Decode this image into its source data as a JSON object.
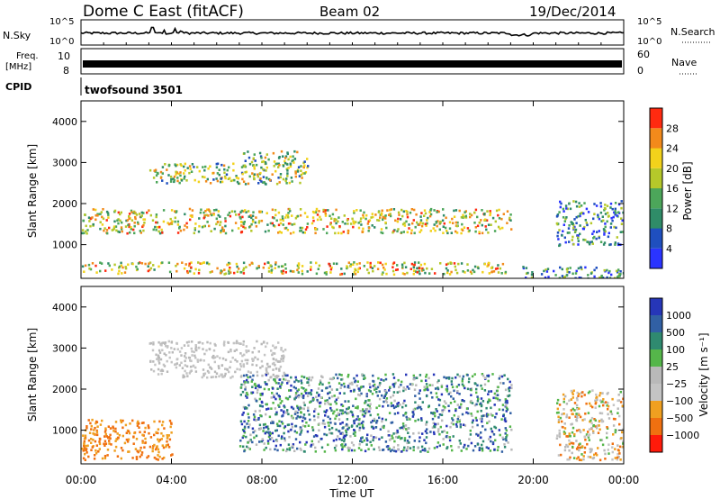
{
  "header": {
    "station": "Dome C East (fitACF)",
    "beam": "Beam 02",
    "date": "19/Dec/2014"
  },
  "strip_labels": {
    "nsky": "N.Sky",
    "nsearch": "N.Search",
    "freq_top": "Freq.",
    "freq_unit": "[MHz]",
    "nave": "Nave",
    "cpid": "CPID",
    "cpid_name": "twofsound 3501",
    "noise_tick_hi": "10^5",
    "noise_tick_lo": "10^0",
    "freq_tick_hi": "10",
    "freq_tick_lo": "8",
    "nave_tick_hi": "60",
    "nave_tick_lo": "0"
  },
  "axes": {
    "ylabel": "Slant Range [km]",
    "xlabel": "Time UT",
    "yticks": [
      "1000",
      "2000",
      "3000",
      "4000"
    ],
    "xticks": [
      "00:00",
      "04:00",
      "08:00",
      "12:00",
      "16:00",
      "20:00",
      "00:00"
    ]
  },
  "power_scale": {
    "label": "Power [dB]",
    "ticks": [
      "4",
      "8",
      "12",
      "16",
      "20",
      "24",
      "28"
    ],
    "colors": [
      "#2a34ff",
      "#1f4fbf",
      "#2f8c68",
      "#4ca65a",
      "#b5c82a",
      "#f2d21b",
      "#f28a1b",
      "#ff2a10"
    ]
  },
  "velocity_scale": {
    "label": "Velocity [m s⁻¹]",
    "ticks": [
      "1000",
      "500",
      "100",
      "25",
      "−25",
      "−100",
      "−500",
      "−1000"
    ],
    "colors": [
      "#2636b8",
      "#3160a4",
      "#2f8a70",
      "#55b64a",
      "#b9b9b9",
      "#c4c4c4",
      "#f0a020",
      "#f07010",
      "#ff1a0a"
    ]
  },
  "chart_data": [
    {
      "type": "heatmap",
      "name": "Power",
      "xlabel": "Time UT",
      "ylabel": "Slant Range [km]",
      "xlim": [
        0,
        24
      ],
      "ylim": [
        180,
        4500
      ],
      "colorbar_label": "Power [dB]",
      "colorbar_range": [
        0,
        32
      ],
      "regions": [
        {
          "t": [
            0,
            19
          ],
          "r": [
            1300,
            1900
          ],
          "level": "high"
        },
        {
          "t": [
            0,
            18.8
          ],
          "r": [
            300,
            600
          ],
          "level": "high"
        },
        {
          "t": [
            3,
            10
          ],
          "r": [
            2500,
            3000
          ],
          "level": "medium"
        },
        {
          "t": [
            7,
            10
          ],
          "r": [
            2900,
            3300
          ],
          "level": "medium"
        },
        {
          "t": [
            21,
            24
          ],
          "r": [
            1000,
            2100
          ],
          "level": "low"
        },
        {
          "t": [
            19.5,
            24
          ],
          "r": [
            200,
            500
          ],
          "level": "low"
        }
      ]
    },
    {
      "type": "heatmap",
      "name": "Velocity",
      "xlabel": "Time UT",
      "ylabel": "Slant Range [km]",
      "xlim": [
        0,
        24
      ],
      "ylim": [
        180,
        4500
      ],
      "colorbar_label": "Velocity [m s⁻¹]",
      "colorbar_range": [
        -1000,
        1000
      ],
      "regions": [
        {
          "t": [
            0,
            4
          ],
          "r": [
            300,
            1300
          ],
          "level": "negative"
        },
        {
          "t": [
            3,
            9
          ],
          "r": [
            2300,
            3200
          ],
          "level": "near-zero"
        },
        {
          "t": [
            7,
            19
          ],
          "r": [
            500,
            2400
          ],
          "level": "positive"
        },
        {
          "t": [
            21,
            24
          ],
          "r": [
            300,
            2000
          ],
          "level": "mixed"
        }
      ]
    }
  ]
}
